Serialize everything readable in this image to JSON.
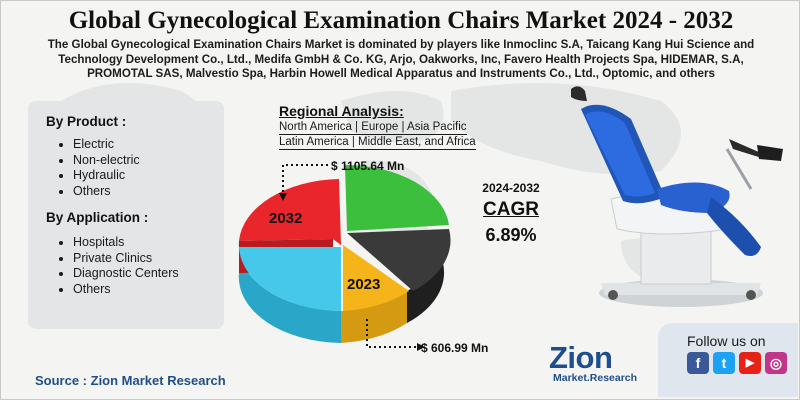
{
  "header": {
    "title": "Global Gynecological Examination Chairs Market 2024 - 2032",
    "subtitle_lines": [
      "The Global Gynecological Examination Chairs Market is dominated by players like Inmoclinc S.A, Taicang Kang Hui Science and",
      "Technology Development Co., Ltd., Medifa GmbH & Co. KG, Arjo, Oakworks, Inc, Favero Health Projects Spa, HIDEMAR, S.A,",
      "PROMOTAL SAS, Malvestio Spa, Harbin Howell Medical Apparatus and Instruments Co., Ltd., Optomic, and others"
    ]
  },
  "segments": {
    "product": {
      "heading": "By Product :",
      "items": [
        "Electric",
        "Non-electric",
        "Hydraulic",
        "Others"
      ]
    },
    "application": {
      "heading": "By Application :",
      "items": [
        "Hospitals",
        "Private Clinics",
        "Diagnostic Centers",
        "Others"
      ]
    }
  },
  "regional": {
    "title": "Regional Analysis:",
    "lines": [
      "North America | Europe | Asia Pacific",
      "Latin America | Middle East, and Africa"
    ]
  },
  "chart_data": {
    "type": "pie",
    "slices": [
      {
        "label": "2032",
        "color": "#e8262b"
      },
      {
        "label": "",
        "color": "#3bbf3c"
      },
      {
        "label": "",
        "color": "#333333"
      },
      {
        "label": "2023",
        "color": "#f4b41a"
      },
      {
        "label": "",
        "color": "#45c8ea"
      }
    ],
    "annotations": {
      "value_2032": "$ 1105.64 Mn",
      "value_2023": "$ 606.99 Mn"
    }
  },
  "cagr": {
    "period": "2024-2032",
    "label": "CAGR",
    "value": "6.89%"
  },
  "footer": {
    "source": "Source : Zion Market Research",
    "logo_main": "Zion",
    "logo_sub": "Market.Research",
    "follow": "Follow us on",
    "social": [
      {
        "icon": "facebook-icon",
        "glyph": "f",
        "color": "#3b5998"
      },
      {
        "icon": "twitter-icon",
        "glyph": "t",
        "color": "#1da1f2"
      },
      {
        "icon": "youtube-icon",
        "glyph": "▶",
        "color": "#e62117"
      },
      {
        "icon": "instagram-icon",
        "glyph": "◎",
        "color": "#c1358a"
      }
    ]
  }
}
